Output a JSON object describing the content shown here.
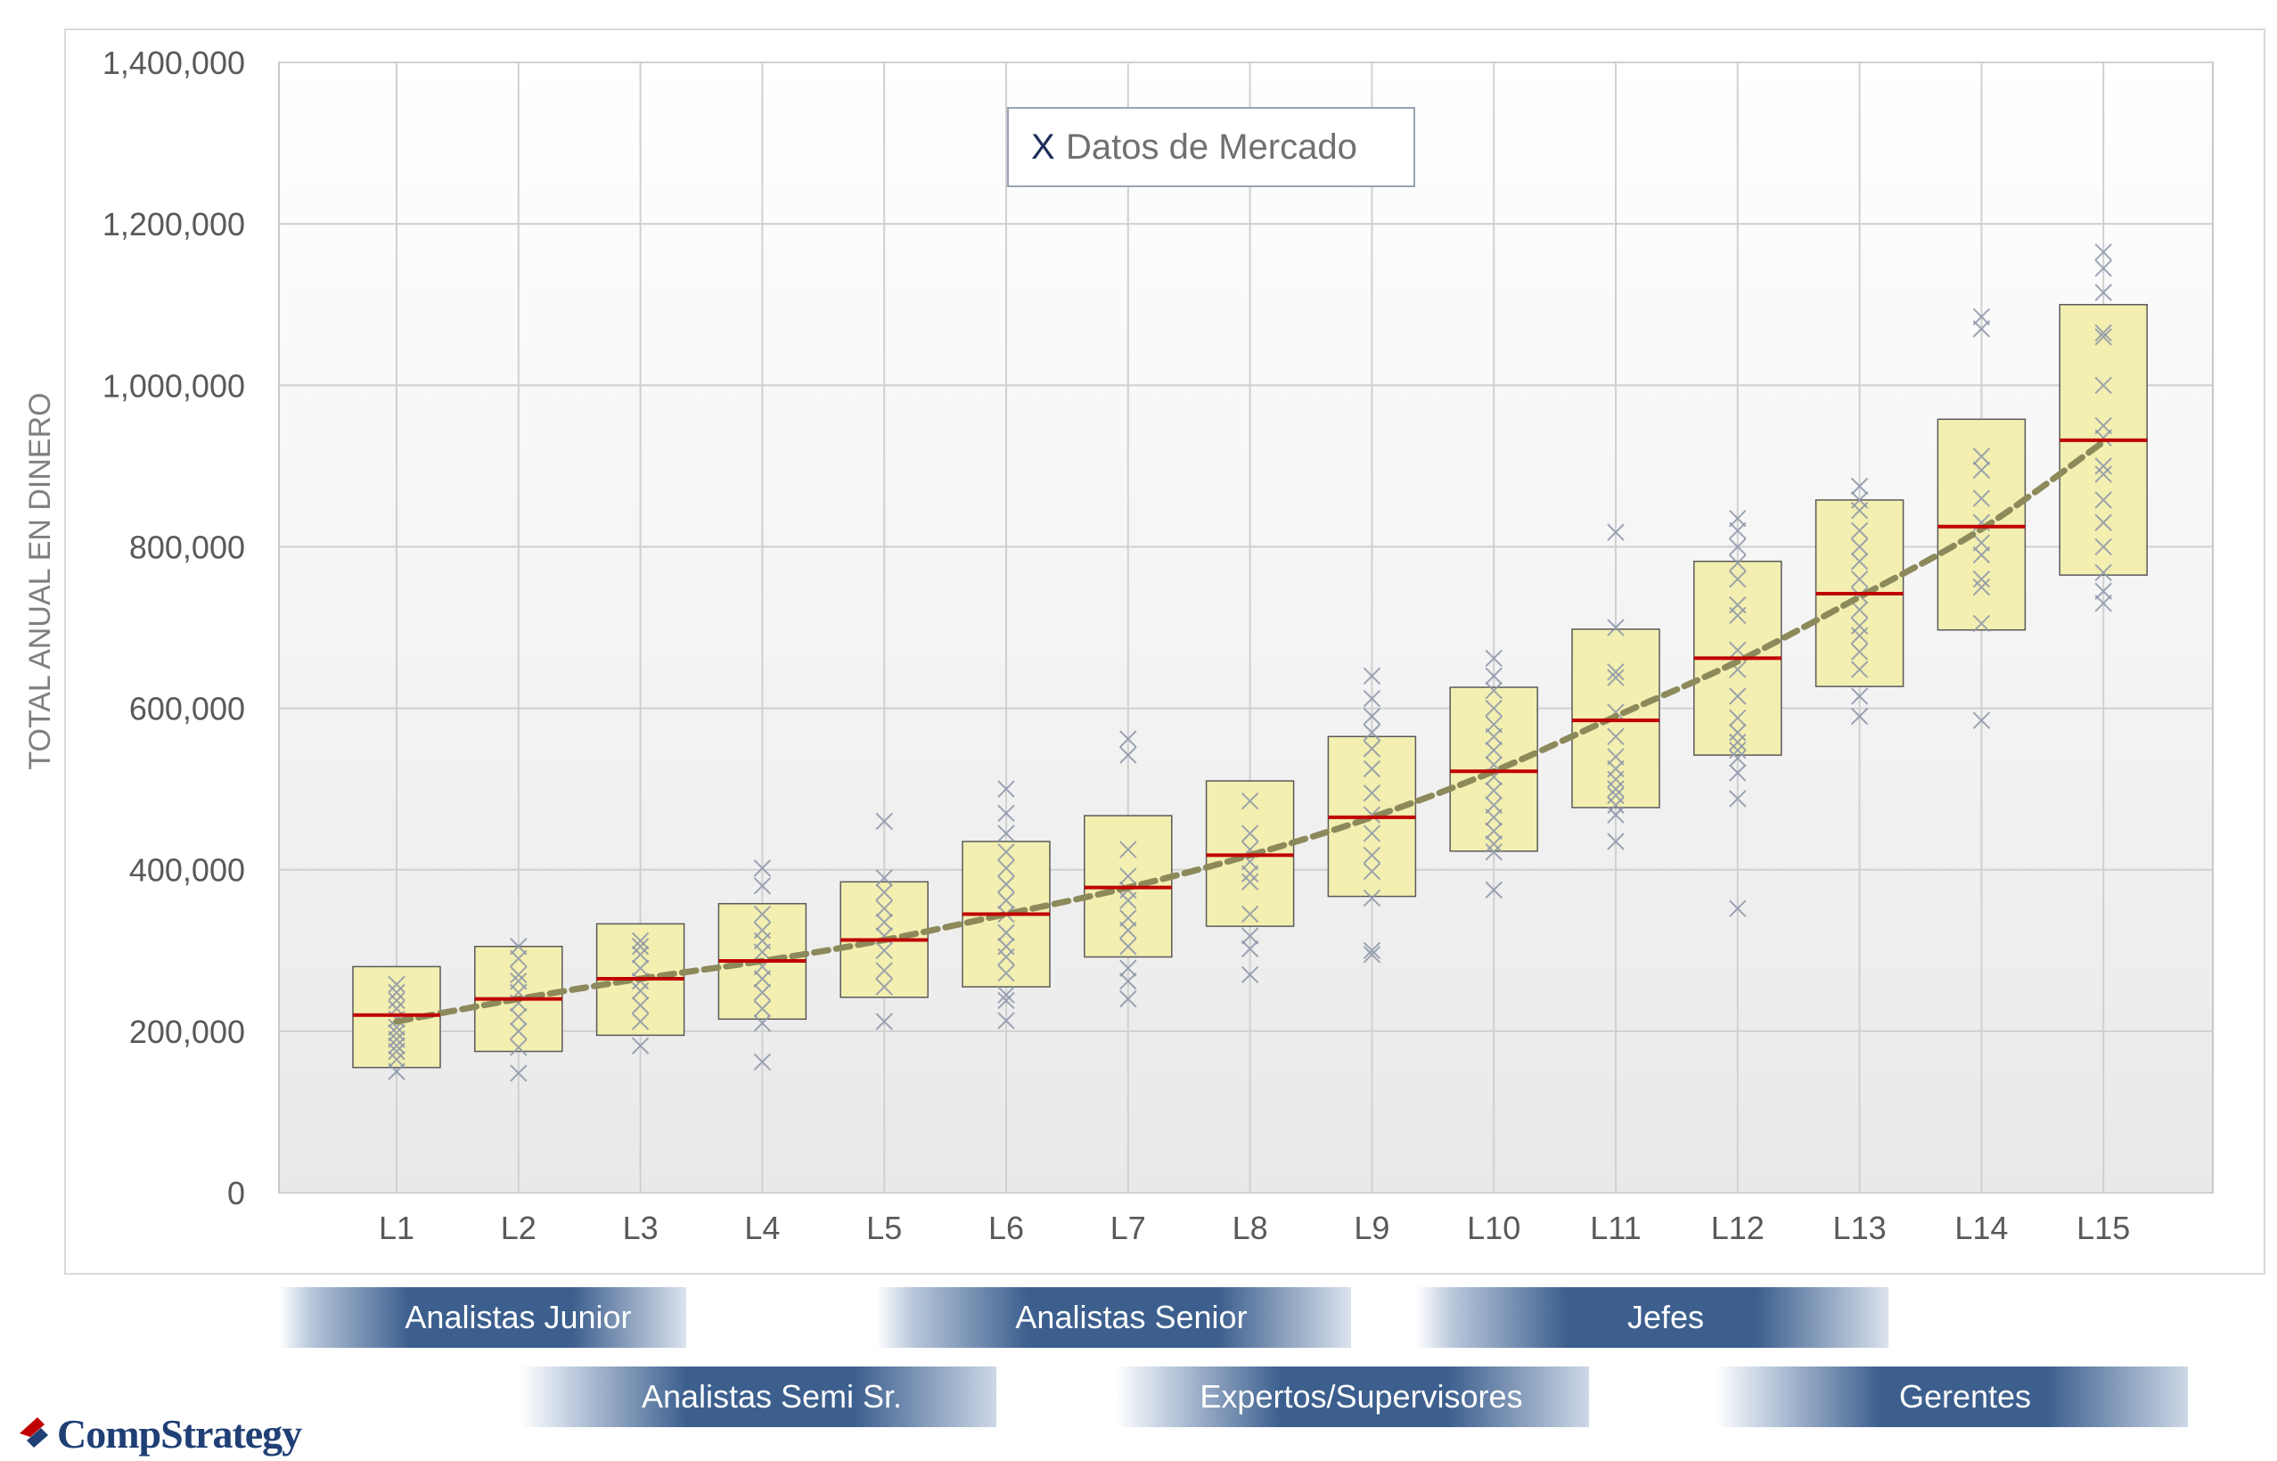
{
  "chart_data": {
    "type": "box",
    "ylabel": "TOTAL ANUAL EN DINERO",
    "xlabel": "",
    "ylim": [
      0,
      1400000
    ],
    "yticks": [
      0,
      200000,
      400000,
      600000,
      800000,
      1000000,
      1200000,
      1400000
    ],
    "ytick_labels": [
      "0",
      "200,000",
      "400,000",
      "600,000",
      "800,000",
      "1,000,000",
      "1,200,000",
      "1,400,000"
    ],
    "categories": [
      "L1",
      "L2",
      "L3",
      "L4",
      "L5",
      "L6",
      "L7",
      "L8",
      "L9",
      "L10",
      "L11",
      "L12",
      "L13",
      "L14",
      "L15"
    ],
    "ranges": [
      {
        "low": 155000,
        "high": 280000
      },
      {
        "low": 175000,
        "high": 305000
      },
      {
        "low": 195000,
        "high": 333000
      },
      {
        "low": 215000,
        "high": 358000
      },
      {
        "low": 242000,
        "high": 385000
      },
      {
        "low": 255000,
        "high": 435000
      },
      {
        "low": 292000,
        "high": 467000
      },
      {
        "low": 330000,
        "high": 510000
      },
      {
        "low": 367000,
        "high": 565000
      },
      {
        "low": 423000,
        "high": 626000
      },
      {
        "low": 477000,
        "high": 698000
      },
      {
        "low": 542000,
        "high": 782000
      },
      {
        "low": 627000,
        "high": 858000
      },
      {
        "low": 697000,
        "high": 958000
      },
      {
        "low": 765000,
        "high": 1100000
      }
    ],
    "midpoints": [
      220000,
      240000,
      265000,
      287000,
      313000,
      345000,
      378000,
      418000,
      465000,
      522000,
      585000,
      662000,
      742000,
      825000,
      932000
    ],
    "trend": [
      212000,
      240000,
      265000,
      287000,
      313000,
      345000,
      378000,
      418000,
      465000,
      522000,
      590000,
      658000,
      738000,
      822000,
      930000
    ],
    "market_data": [
      [
        150000,
        165000,
        175000,
        182000,
        190000,
        198000,
        205000,
        215000,
        228000,
        238000,
        248000,
        258000
      ],
      [
        148000,
        180000,
        200000,
        218000,
        235000,
        248000,
        262000,
        270000,
        290000,
        305000
      ],
      [
        182000,
        212000,
        232000,
        250000,
        262000,
        278000,
        295000,
        305000,
        312000
      ],
      [
        162000,
        210000,
        228000,
        248000,
        265000,
        280000,
        298000,
        312000,
        325000,
        345000,
        380000,
        402000
      ],
      [
        212000,
        255000,
        275000,
        300000,
        318000,
        335000,
        352000,
        372000,
        390000,
        460000
      ],
      [
        213000,
        238000,
        245000,
        272000,
        292000,
        305000,
        322000,
        345000,
        362000,
        382000,
        402000,
        422000,
        445000,
        470000,
        500000
      ],
      [
        240000,
        262000,
        278000,
        305000,
        325000,
        340000,
        362000,
        375000,
        392000,
        425000,
        542000,
        562000
      ],
      [
        270000,
        302000,
        318000,
        345000,
        385000,
        395000,
        410000,
        425000,
        445000,
        485000
      ],
      [
        295000,
        300000,
        365000,
        398000,
        418000,
        445000,
        468000,
        495000,
        525000,
        550000,
        570000,
        590000,
        612000,
        640000
      ],
      [
        375000,
        422000,
        432000,
        448000,
        465000,
        480000,
        498000,
        515000,
        530000,
        548000,
        565000,
        580000,
        600000,
        622000,
        640000,
        662000
      ],
      [
        435000,
        468000,
        480000,
        492000,
        500000,
        512000,
        525000,
        540000,
        565000,
        595000,
        638000,
        645000,
        700000,
        818000
      ],
      [
        352000,
        488000,
        520000,
        538000,
        548000,
        558000,
        570000,
        588000,
        615000,
        648000,
        672000,
        715000,
        728000,
        760000,
        780000,
        800000,
        820000,
        835000
      ],
      [
        590000,
        615000,
        648000,
        670000,
        690000,
        702000,
        722000,
        740000,
        760000,
        782000,
        800000,
        820000,
        845000,
        858000,
        875000
      ],
      [
        585000,
        705000,
        750000,
        760000,
        790000,
        805000,
        830000,
        860000,
        895000,
        912000,
        1070000,
        1085000
      ],
      [
        730000,
        745000,
        768000,
        800000,
        830000,
        858000,
        890000,
        900000,
        935000,
        950000,
        1000000,
        1060000,
        1065000,
        1115000,
        1145000,
        1165000
      ]
    ],
    "legend": {
      "marker": "X",
      "label": "Datos de Mercado",
      "position": "top-center"
    },
    "colors": {
      "box_fill": "#f3efb1",
      "box_stroke": "#5a5a5a",
      "midpoint": "#c00000",
      "trend": "#8c8a5b",
      "marker": "#8c95a8",
      "legend_marker": "#1f2d5c",
      "grid": "#d0d0d0",
      "axis_text": "#595959"
    },
    "grid": true
  },
  "groups": {
    "row1": [
      "Analistas Junior",
      "Analistas Senior",
      "Jefes"
    ],
    "row2": [
      "Analistas Semi Sr.",
      "Expertos/Supervisores",
      "Gerentes"
    ]
  },
  "logo": {
    "text": "CompStrategy"
  }
}
